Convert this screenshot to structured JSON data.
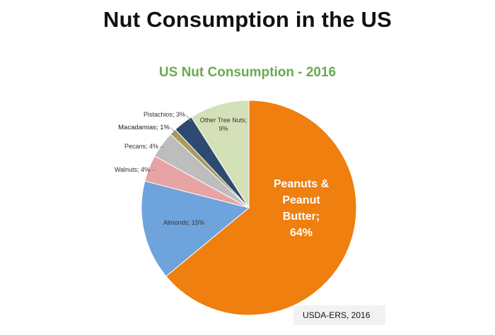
{
  "slide": {
    "title": "Nut Consumption in the US",
    "source": "USDA-ERS, 2016"
  },
  "chart_data": {
    "type": "pie",
    "title": "US Nut Consumption - 2016",
    "unit": "%",
    "slices": [
      {
        "label": "Peanuts & Peanut Butter",
        "value": 64,
        "display_label": "Peanuts &\nPeanut\nButter;\n64%",
        "color": "#ef7f0e"
      },
      {
        "label": "Almonds",
        "value": 15,
        "display_label": "Almonds; 15%",
        "color": "#6fa3dc"
      },
      {
        "label": "Walnuts",
        "value": 4,
        "display_label": "Walnuts; 4%",
        "color": "#e8a3a4"
      },
      {
        "label": "Pecans",
        "value": 4,
        "display_label": "Pecans; 4%",
        "color": "#bdbdbd"
      },
      {
        "label": "Macadamias",
        "value": 1,
        "display_label": "Macadamias; 1%",
        "color": "#a99a5c"
      },
      {
        "label": "Pistachios",
        "value": 3,
        "display_label": "Pistachios; 3%",
        "color": "#2e4a70"
      },
      {
        "label": "Other Tree Nuts",
        "value": 9,
        "display_label": "Other Tree Nuts;\n9%",
        "color": "#d4e1b8"
      }
    ]
  }
}
